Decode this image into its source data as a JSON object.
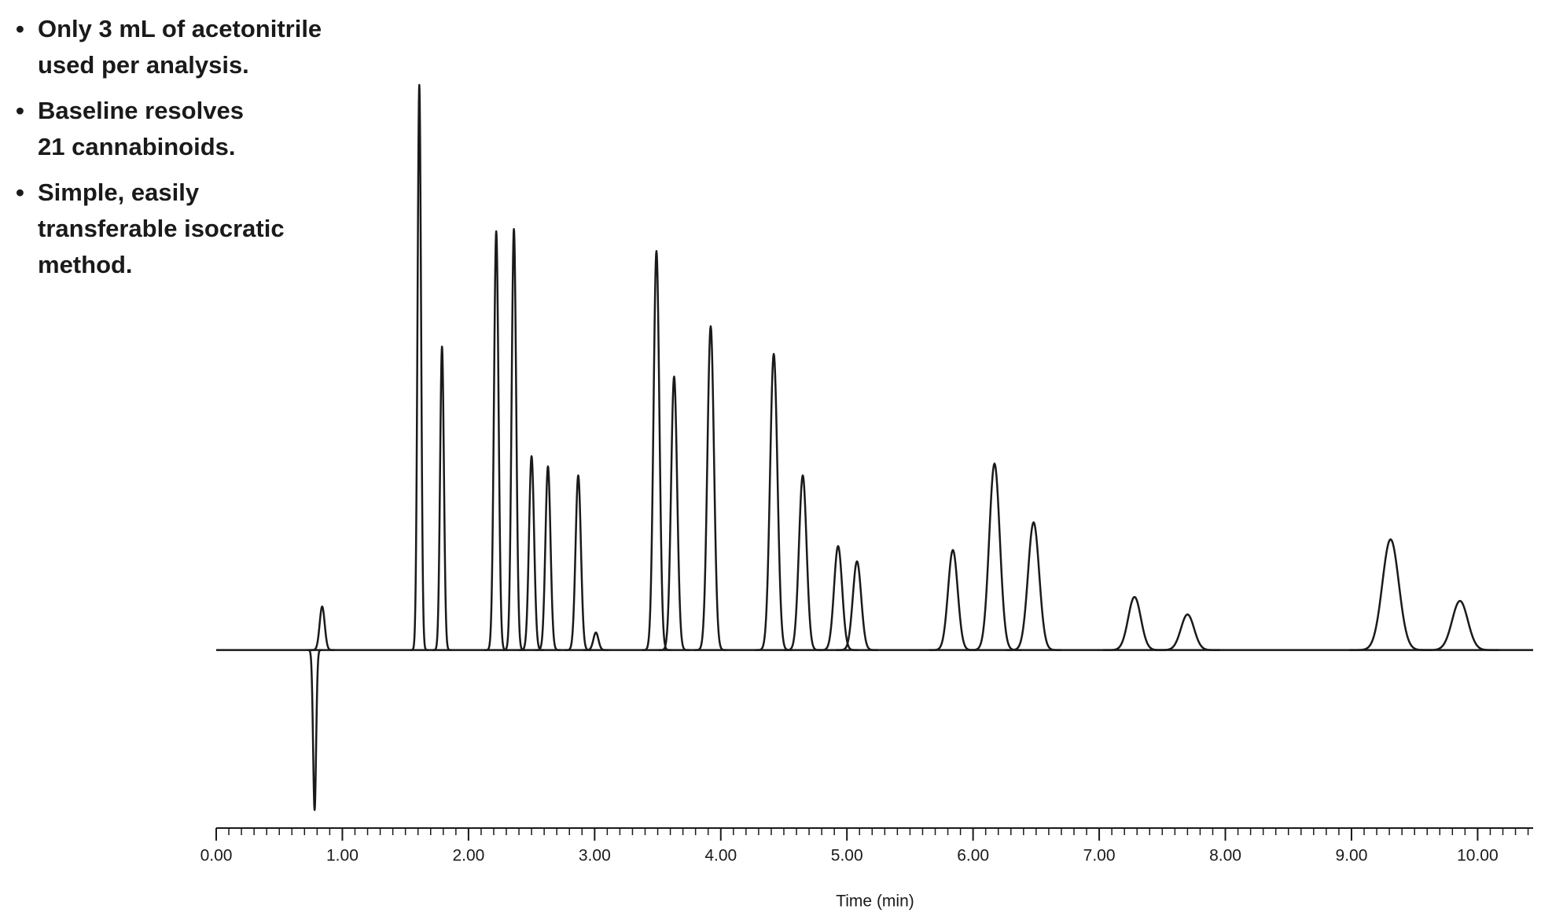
{
  "notes": [
    [
      "Only 3 mL of acetonitrile",
      "used per analysis."
    ],
    [
      "Baseline resolves",
      "21 cannabinoids."
    ],
    [
      "Simple, easily",
      "transferable isocratic",
      "method."
    ]
  ],
  "chart_data": {
    "type": "chromatogram",
    "xlabel": "Time (min)",
    "color": "#1a1a1a",
    "x": [
      0.78,
      0.84,
      1.61,
      1.79,
      2.22,
      2.36,
      2.5,
      2.63,
      2.87,
      3.01,
      3.49,
      3.63,
      3.92,
      4.42,
      4.65,
      4.93,
      5.08,
      5.84,
      6.17,
      6.48,
      7.28,
      7.7,
      9.31,
      9.86
    ],
    "values": [
      -28.3,
      7.7,
      100,
      53.7,
      74.1,
      74.5,
      34.3,
      32.5,
      30.9,
      3.1,
      70.6,
      48.4,
      57.3,
      52.4,
      30.9,
      18.4,
      15.7,
      17.7,
      33.0,
      22.6,
      9.4,
      6.3,
      19.6,
      8.7
    ],
    "peak_widths": [
      0.012,
      0.02,
      0.014,
      0.015,
      0.018,
      0.018,
      0.02,
      0.02,
      0.021,
      0.02,
      0.023,
      0.024,
      0.026,
      0.029,
      0.03,
      0.032,
      0.033,
      0.038,
      0.042,
      0.044,
      0.05,
      0.052,
      0.065,
      0.062
    ],
    "xlim": [
      0,
      10.44
    ],
    "ylim": [
      -31.5,
      100
    ],
    "xticks": [
      {
        "value": 0,
        "label": "0.00"
      },
      {
        "value": 1,
        "label": "1.00"
      },
      {
        "value": 2,
        "label": "2.00"
      },
      {
        "value": 3,
        "label": "3.00"
      },
      {
        "value": 4,
        "label": "4.00"
      },
      {
        "value": 5,
        "label": "5.00"
      },
      {
        "value": 6,
        "label": "6.00"
      },
      {
        "value": 7,
        "label": "7.00"
      },
      {
        "value": 8,
        "label": "8.00"
      },
      {
        "value": 9,
        "label": "9.00"
      },
      {
        "value": 10,
        "label": "10.00"
      }
    ],
    "minor_tick_interval": 0.1
  }
}
